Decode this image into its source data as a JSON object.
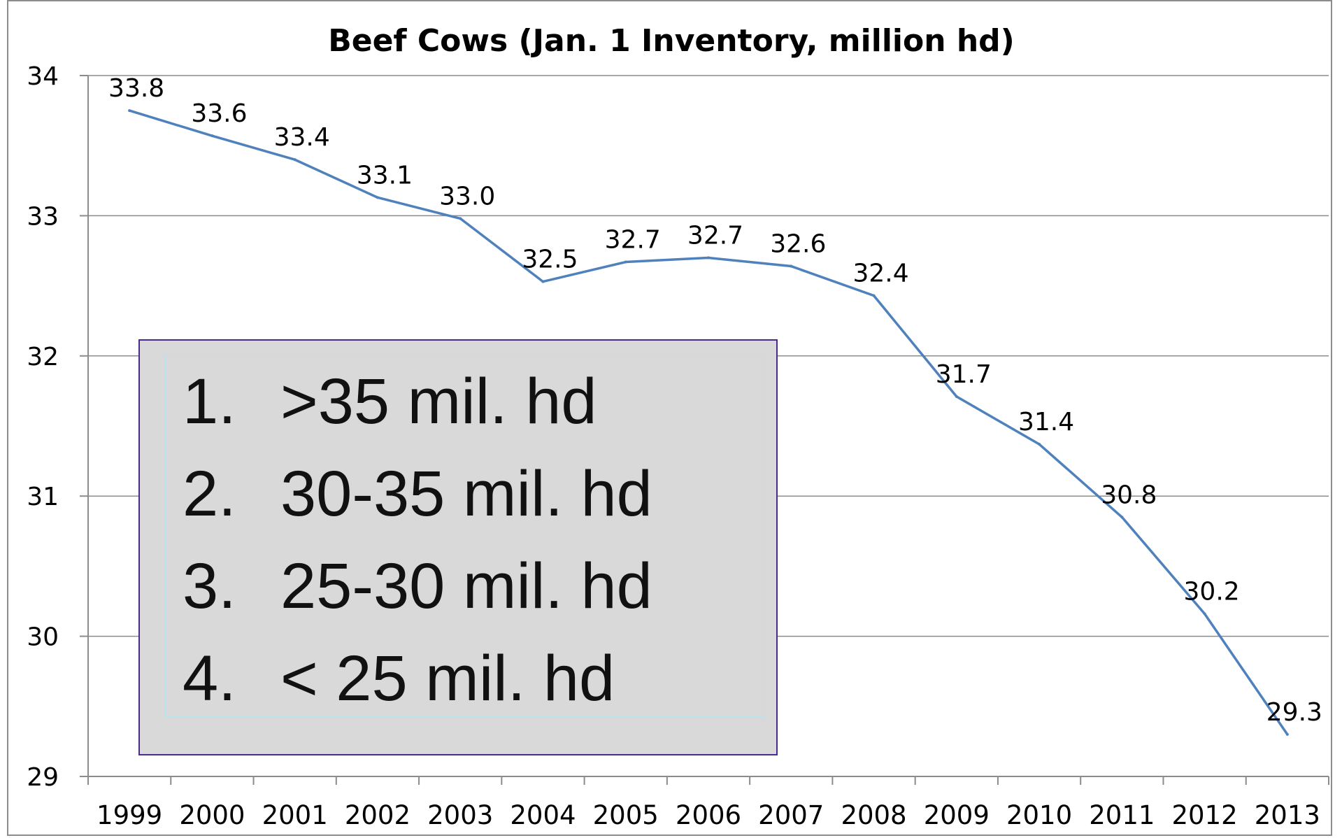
{
  "chart_data": {
    "type": "line",
    "title": "Beef Cows (Jan. 1 Inventory, million hd)",
    "xlabel": "",
    "ylabel": "",
    "categories": [
      "1999",
      "2000",
      "2001",
      "2002",
      "2003",
      "2004",
      "2005",
      "2006",
      "2007",
      "2008",
      "2009",
      "2010",
      "2011",
      "2012",
      "2013"
    ],
    "series": [
      {
        "values": [
          33.75,
          33.57,
          33.4,
          33.13,
          32.98,
          32.53,
          32.67,
          32.7,
          32.64,
          32.43,
          31.71,
          31.37,
          30.85,
          30.16,
          29.3
        ],
        "data_labels": [
          "33.8",
          "33.6",
          "33.4",
          "33.1",
          "33.0",
          "32.5",
          "32.7",
          "32.7",
          "32.6",
          "32.4",
          "31.7",
          "31.4",
          "30.8",
          "30.2",
          "29.3"
        ],
        "color": "#4f81bd"
      }
    ],
    "ylim": [
      29,
      34
    ],
    "yticks": [
      "29",
      "30",
      "31",
      "32",
      "33",
      "34"
    ],
    "grid": true,
    "legend": "none"
  },
  "quiz": {
    "items": [
      {
        "num": "1.",
        "text": ">35 mil. hd"
      },
      {
        "num": "2.",
        "text": "30-35 mil. hd"
      },
      {
        "num": "3.",
        "text": "25-30 mil. hd"
      },
      {
        "num": "4.",
        "text": "< 25 mil. hd"
      }
    ]
  }
}
